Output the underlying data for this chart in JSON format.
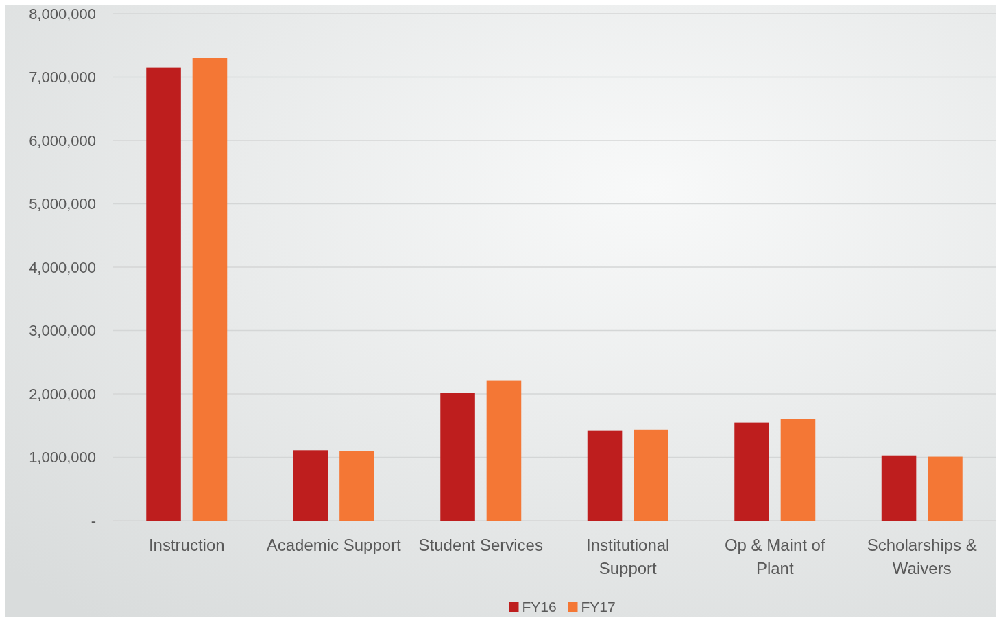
{
  "chart_data": {
    "type": "bar",
    "categories": [
      "Instruction",
      "Academic Support",
      "Student Services",
      "Institutional Support",
      "Op & Maint of Plant",
      "Scholarships & Waivers"
    ],
    "series": [
      {
        "name": "FY16",
        "color": "#be1e1e",
        "values": [
          7150000,
          1110000,
          2020000,
          1420000,
          1550000,
          1030000
        ]
      },
      {
        "name": "FY17",
        "color": "#f47735",
        "values": [
          7300000,
          1100000,
          2210000,
          1440000,
          1600000,
          1010000
        ]
      }
    ],
    "ylim": [
      0,
      8000000
    ],
    "yticks": [
      {
        "value": 0,
        "label": "-"
      },
      {
        "value": 1000000,
        "label": "1,000,000"
      },
      {
        "value": 2000000,
        "label": "2,000,000"
      },
      {
        "value": 3000000,
        "label": "3,000,000"
      },
      {
        "value": 4000000,
        "label": "4,000,000"
      },
      {
        "value": 5000000,
        "label": "5,000,000"
      },
      {
        "value": 6000000,
        "label": "6,000,000"
      },
      {
        "value": 7000000,
        "label": "7,000,000"
      },
      {
        "value": 8000000,
        "label": "8,000,000"
      }
    ],
    "grid": "y",
    "legend": "bottom"
  }
}
